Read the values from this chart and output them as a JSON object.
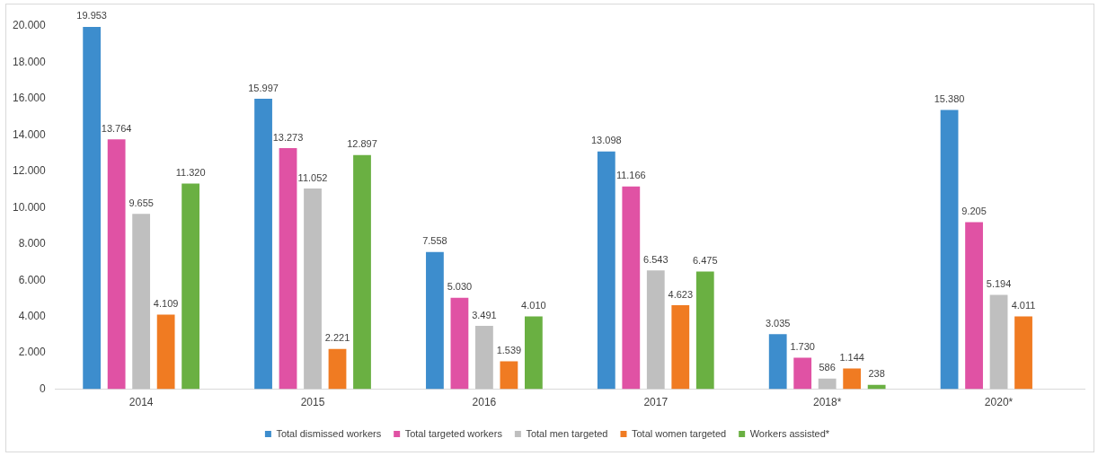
{
  "chart_data": {
    "type": "bar",
    "categories": [
      "2014",
      "2015",
      "2016",
      "2017",
      "2018*",
      "2020*"
    ],
    "series": [
      {
        "name": "Total dismissed workers",
        "color": "#3d8dcd",
        "values": [
          19953,
          15997,
          7558,
          13098,
          3035,
          15380
        ],
        "value_labels": [
          "19.953",
          "15.997",
          "7.558",
          "13.098",
          "3.035",
          "15.380"
        ]
      },
      {
        "name": "Total targeted workers",
        "color": "#e052a4",
        "values": [
          13764,
          13273,
          5030,
          11166,
          1730,
          9205
        ],
        "value_labels": [
          "13.764",
          "13.273",
          "5.030",
          "11.166",
          "1.730",
          "9.205"
        ]
      },
      {
        "name": "Total men targeted",
        "color": "#bfbfbf",
        "values": [
          9655,
          11052,
          3491,
          6543,
          586,
          5194
        ],
        "value_labels": [
          "9.655",
          "11.052",
          "3.491",
          "6.543",
          "586",
          "5.194"
        ]
      },
      {
        "name": "Total women targeted",
        "color": "#f07b22",
        "values": [
          4109,
          2221,
          1539,
          4623,
          1144,
          4011
        ],
        "value_labels": [
          "4.109",
          "2.221",
          "1.539",
          "4.623",
          "1.144",
          "4.011"
        ]
      },
      {
        "name": "Workers assisted*",
        "color": "#6ab042",
        "values": [
          11320,
          12897,
          4010,
          6475,
          238,
          null
        ],
        "value_labels": [
          "11.320",
          "12.897",
          "4.010",
          "6.475",
          "238",
          null
        ]
      }
    ],
    "ylim": [
      0,
      20000
    ],
    "yticks": [
      {
        "value": 0,
        "label": "0"
      },
      {
        "value": 2000,
        "label": "2.000"
      },
      {
        "value": 4000,
        "label": "4.000"
      },
      {
        "value": 6000,
        "label": "6.000"
      },
      {
        "value": 8000,
        "label": "8.000"
      },
      {
        "value": 10000,
        "label": "10.000"
      },
      {
        "value": 12000,
        "label": "12.000"
      },
      {
        "value": 14000,
        "label": "14.000"
      },
      {
        "value": 16000,
        "label": "16.000"
      },
      {
        "value": 18000,
        "label": "18.000"
      },
      {
        "value": 20000,
        "label": "20.000"
      }
    ],
    "grid": false,
    "legend": "bottom"
  }
}
